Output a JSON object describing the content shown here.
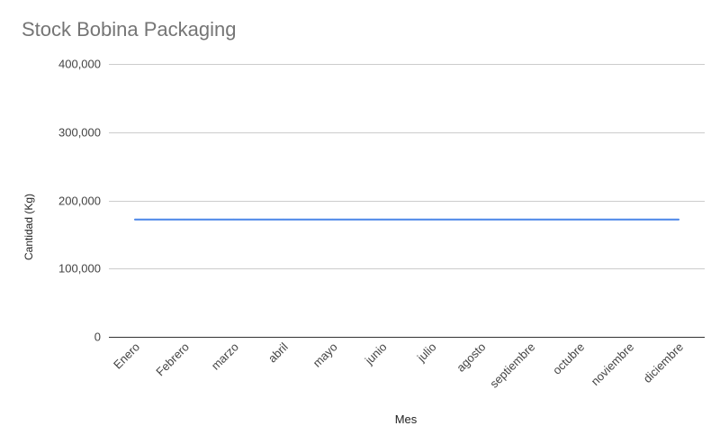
{
  "chart_data": {
    "type": "line",
    "title": "Stock Bobina Packaging",
    "xlabel": "Mes",
    "ylabel": "Cantidad (Kg)",
    "categories": [
      "Enero",
      "Febrero",
      "marzo",
      "abril",
      "mayo",
      "junio",
      "julio",
      "agosto",
      "septiembre",
      "octubre",
      "noviembre",
      "diciembre"
    ],
    "series": [
      {
        "values": [
          172000,
          172000,
          172000,
          172000,
          172000,
          172000,
          172000,
          172000,
          172000,
          172000,
          172000,
          172000
        ],
        "color": "#4a86e8"
      }
    ],
    "ylim": [
      0,
      400000
    ],
    "yticks": [
      0,
      100000,
      200000,
      300000,
      400000
    ],
    "ytick_labels": [
      "0",
      "100,000",
      "200,000",
      "300,000",
      "400,000"
    ],
    "grid": true,
    "legend": "none"
  }
}
